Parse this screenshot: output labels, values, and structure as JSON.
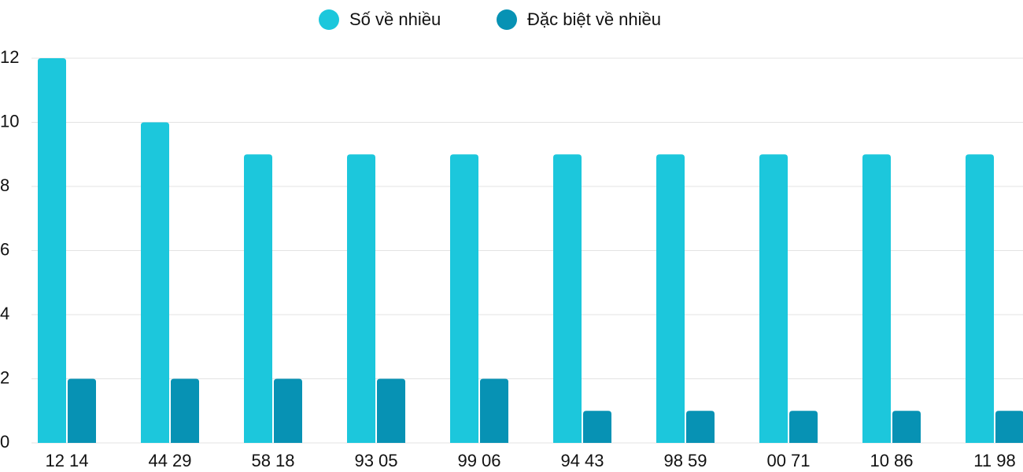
{
  "chart_data": {
    "type": "bar",
    "categories": [
      "12 14",
      "44 29",
      "58 18",
      "93 05",
      "99 06",
      "94 43",
      "98 59",
      "00 71",
      "10 86",
      "11 98"
    ],
    "series": [
      {
        "name": "Số về nhiều",
        "color": "#1cc7dc",
        "values": [
          12,
          10,
          9,
          9,
          9,
          9,
          9,
          9,
          9,
          9
        ]
      },
      {
        "name": "Đặc biệt về nhiều",
        "color": "#0792b4",
        "values": [
          2,
          2,
          2,
          2,
          2,
          1,
          1,
          1,
          1,
          1
        ]
      }
    ],
    "ylim": [
      0,
      12
    ],
    "yticks": [
      0,
      2,
      4,
      6,
      8,
      10,
      12
    ],
    "grid": true,
    "legend": "top"
  }
}
